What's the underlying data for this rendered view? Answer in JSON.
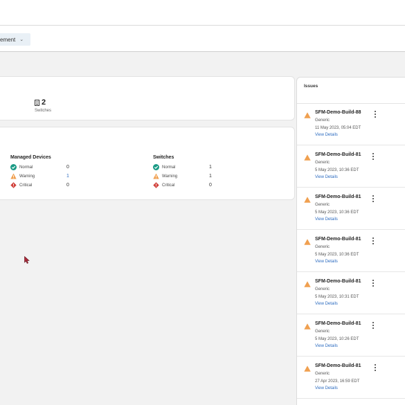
{
  "header": {
    "dropdown_label": "ement"
  },
  "summary": {
    "switches_count": "2",
    "switches_label": "Switches"
  },
  "status": {
    "managed_devices": {
      "title": "Managed Devices",
      "rows": [
        {
          "label": "Normal",
          "value": "0"
        },
        {
          "label": "Warning",
          "value": "1"
        },
        {
          "label": "Critical",
          "value": "0"
        }
      ]
    },
    "switches": {
      "title": "Switches",
      "rows": [
        {
          "label": "Normal",
          "value": "1"
        },
        {
          "label": "Warning",
          "value": "1"
        },
        {
          "label": "Critical",
          "value": "0"
        }
      ]
    }
  },
  "issues": {
    "title": "Issues",
    "items": [
      {
        "name": "SFM-Demo-Build-88",
        "type": "Generic",
        "time": "11 May 2023, 05:04 EDT",
        "link": "View Details"
      },
      {
        "name": "SFM-Demo-Build-81",
        "type": "Generic",
        "time": "5 May 2023, 10:36 EDT",
        "link": "View Details"
      },
      {
        "name": "SFM-Demo-Build-81",
        "type": "Generic",
        "time": "5 May 2023, 10:36 EDT",
        "link": "View Details"
      },
      {
        "name": "SFM-Demo-Build-81",
        "type": "Generic",
        "time": "5 May 2023, 10:36 EDT",
        "link": "View Details"
      },
      {
        "name": "SFM-Demo-Build-81",
        "type": "Generic",
        "time": "5 May 2023, 10:31 EDT",
        "link": "View Details"
      },
      {
        "name": "SFM-Demo-Build-81",
        "type": "Generic",
        "time": "5 May 2023, 10:26 EDT",
        "link": "View Details"
      },
      {
        "name": "SFM-Demo-Build-81",
        "type": "Generic",
        "time": "27 Apr 2023, 16:59 EDT",
        "link": "View Details"
      }
    ]
  },
  "colors": {
    "normal": "#1a9a85",
    "warning": "#f0a050",
    "critical": "#d0403a",
    "link": "#2d6cc0"
  },
  "icons": [
    "switch-icon",
    "check-circle-icon",
    "warning-triangle-icon",
    "critical-diamond-icon",
    "kebab-menu-icon",
    "chevron-down-icon",
    "mouse-pointer-icon"
  ]
}
